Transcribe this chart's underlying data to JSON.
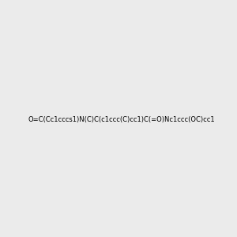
{
  "smiles": "O=C(Cc1cccs1)N(C)C(c1ccc(C)cc1)C(=O)Nc1ccc(OC)cc1",
  "image_size": 300,
  "background_color": "#ebebeb"
}
